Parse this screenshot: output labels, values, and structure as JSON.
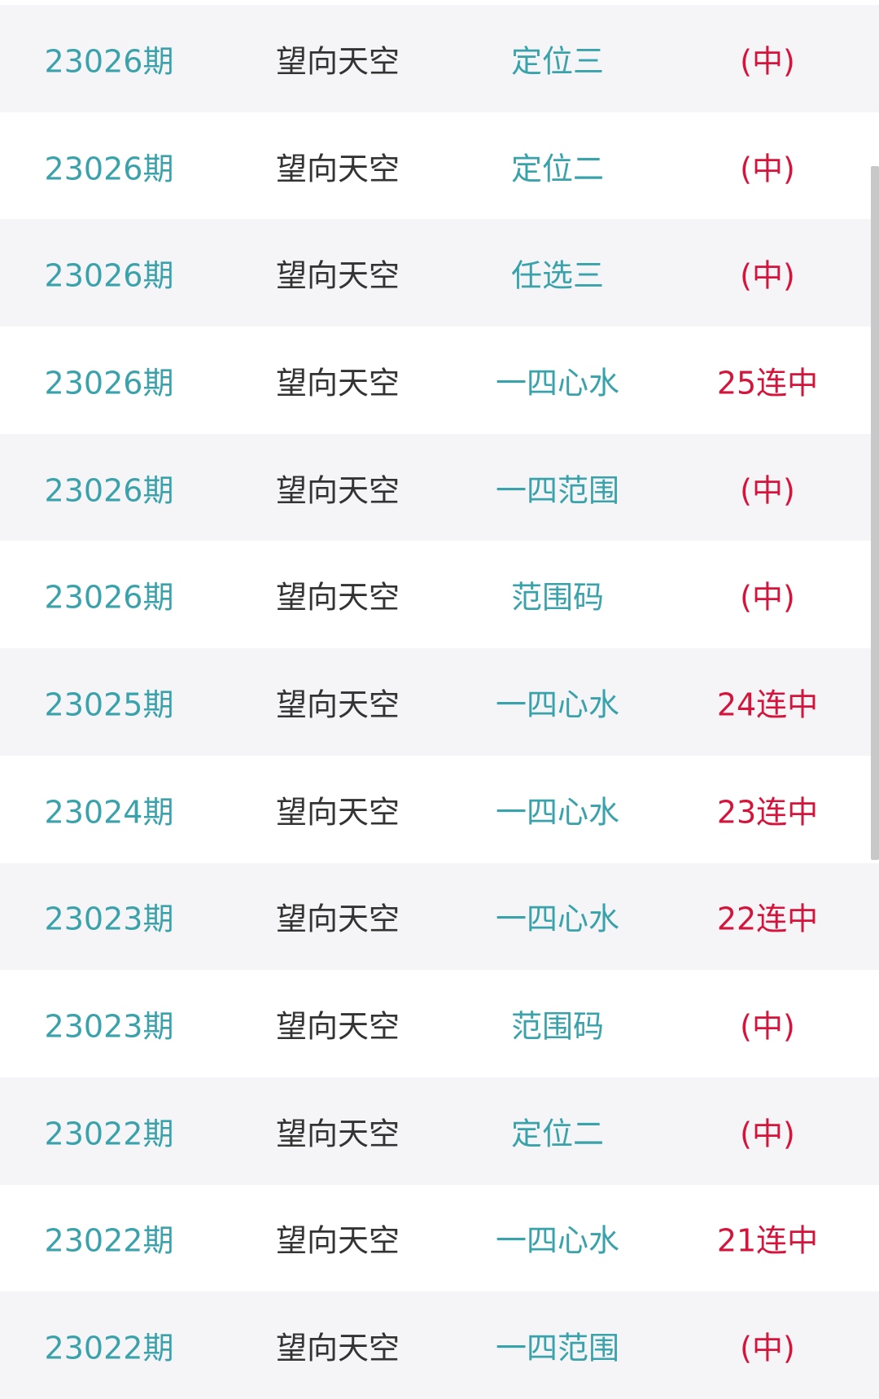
{
  "rows": [
    {
      "period": "23026期",
      "name": "望向天空",
      "type": "定位三",
      "result": "(中)"
    },
    {
      "period": "23026期",
      "name": "望向天空",
      "type": "定位二",
      "result": "(中)"
    },
    {
      "period": "23026期",
      "name": "望向天空",
      "type": "任选三",
      "result": "(中)"
    },
    {
      "period": "23026期",
      "name": "望向天空",
      "type": "一四心水",
      "result": "25连中"
    },
    {
      "period": "23026期",
      "name": "望向天空",
      "type": "一四范围",
      "result": "(中)"
    },
    {
      "period": "23026期",
      "name": "望向天空",
      "type": "范围码",
      "result": "(中)"
    },
    {
      "period": "23025期",
      "name": "望向天空",
      "type": "一四心水",
      "result": "24连中"
    },
    {
      "period": "23024期",
      "name": "望向天空",
      "type": "一四心水",
      "result": "23连中"
    },
    {
      "period": "23023期",
      "name": "望向天空",
      "type": "一四心水",
      "result": "22连中"
    },
    {
      "period": "23023期",
      "name": "望向天空",
      "type": "范围码",
      "result": "(中)"
    },
    {
      "period": "23022期",
      "name": "望向天空",
      "type": "定位二",
      "result": "(中)"
    },
    {
      "period": "23022期",
      "name": "望向天空",
      "type": "一四心水",
      "result": "21连中"
    },
    {
      "period": "23022期",
      "name": "望向天空",
      "type": "一四范围",
      "result": "(中)"
    }
  ],
  "colors": {
    "period": "#3aa2aa",
    "name": "#333333",
    "type": "#3aa2aa",
    "result": "#d5143c",
    "row_alt": "#f5f5f7"
  }
}
